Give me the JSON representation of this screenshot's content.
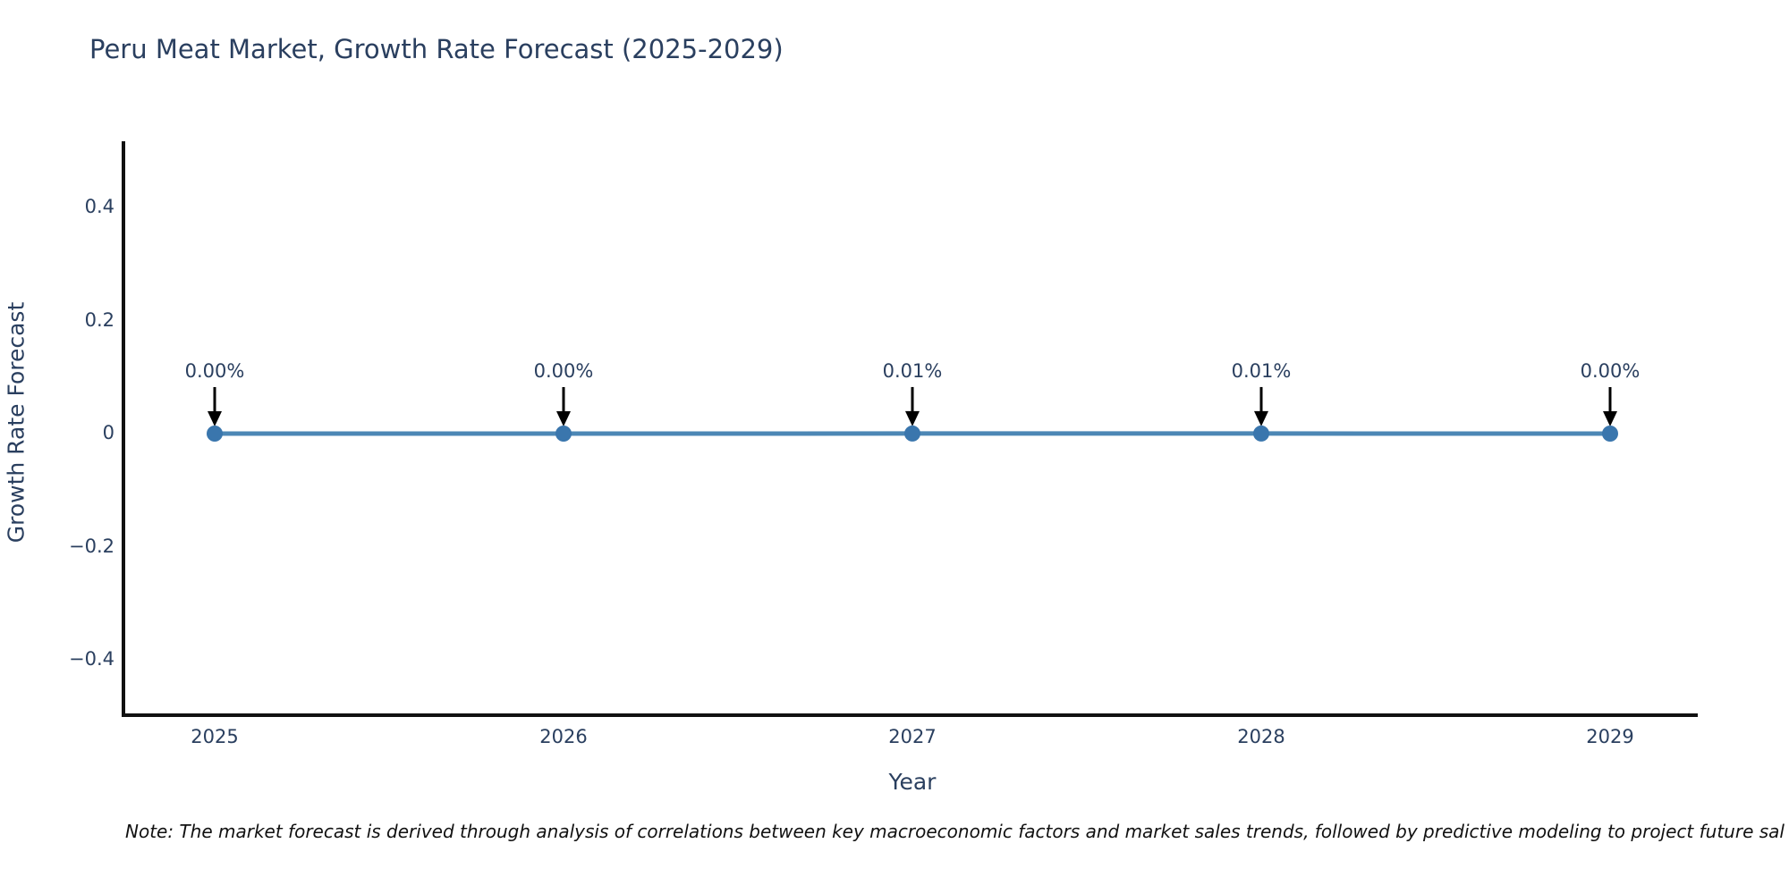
{
  "title": "Peru Meat Market, Growth Rate Forecast (2025-2029)",
  "note": "Note: The market forecast is derived through analysis of correlations between key macroeconomic factors and market sales trends, followed by predictive modeling to project future sal",
  "colors": {
    "title_text": "#2a3f5f",
    "tick_text": "#2a3f5f",
    "axis_line": "#111111",
    "line": "#4c87b5",
    "marker": "#3a76ad",
    "annotation_arrow": "#000000"
  },
  "chart_data": {
    "type": "line",
    "title": "Peru Meat Market, Growth Rate Forecast (2025-2029)",
    "xlabel": "Year",
    "ylabel": "Growth Rate Forecast",
    "x": [
      2025,
      2026,
      2027,
      2028,
      2029
    ],
    "series": [
      {
        "name": "Growth Rate Forecast",
        "values": [
          0.0,
          0.0,
          0.0001,
          0.0001,
          0.0
        ]
      }
    ],
    "point_labels": [
      "0.00%",
      "0.00%",
      "0.01%",
      "0.01%",
      "0.00%"
    ],
    "xtick_labels": [
      "2025",
      "2026",
      "2027",
      "2028",
      "2029"
    ],
    "yticks": [
      0.4,
      0.2,
      0,
      -0.2,
      -0.4
    ],
    "ytick_labels": [
      "0.4",
      "0.2",
      "0",
      "−0.2",
      "−0.4"
    ],
    "ylim": [
      -0.5,
      0.5
    ],
    "grid": false,
    "legend_position": "none",
    "annotations": "down-arrow from each percentage label to its data point"
  }
}
